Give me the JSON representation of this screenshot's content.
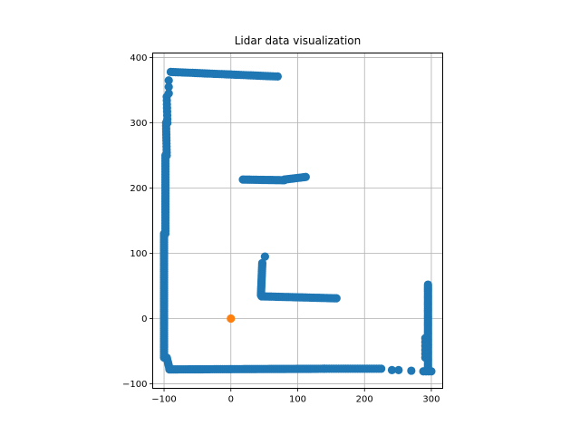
{
  "chart_data": {
    "type": "scatter",
    "title": "Lidar data visualization",
    "xlabel": "",
    "ylabel": "",
    "xlim": [
      -117,
      317
    ],
    "ylim": [
      -107,
      407
    ],
    "xticks": [
      -100,
      0,
      100,
      200,
      300
    ],
    "yticks": [
      -100,
      0,
      100,
      200,
      300,
      400
    ],
    "grid": true,
    "legend": "none",
    "series": [
      {
        "color": "#1f77b4",
        "segments": [
          {
            "from": [
              -100,
              130
            ],
            "to": [
              -100,
              -60
            ],
            "n": 60
          },
          {
            "from": [
              -98,
              250
            ],
            "to": [
              -98,
              130
            ],
            "n": 30
          },
          {
            "from": [
              -97,
              300
            ],
            "to": [
              -96,
              250
            ],
            "n": 12
          },
          {
            "from": [
              -96,
              340
            ],
            "to": [
              -95,
              300
            ],
            "n": 8
          },
          {
            "from": [
              -93,
              365
            ],
            "to": [
              -93,
              345
            ],
            "n": 3
          },
          {
            "from": [
              -90,
              378
            ],
            "to": [
              70,
              371
            ],
            "n": 45
          },
          {
            "from": [
              -96,
              -60
            ],
            "to": [
              -92,
              -76
            ],
            "n": 8
          },
          {
            "from": [
              -92,
              -78
            ],
            "to": [
              140,
              -77
            ],
            "n": 80
          },
          {
            "from": [
              140,
              -77
            ],
            "to": [
              225,
              -77
            ],
            "n": 25
          },
          {
            "from": [
              241,
              -79
            ],
            "to": [
              251,
              -79
            ],
            "n": 2
          },
          {
            "from": [
              270,
              -80
            ],
            "to": [
              270,
              -80
            ],
            "n": 1
          },
          {
            "from": [
              288,
              -81
            ],
            "to": [
              300,
              -81
            ],
            "n": 4
          },
          {
            "from": [
              295,
              -76
            ],
            "to": [
              295,
              52
            ],
            "n": 50
          },
          {
            "from": [
              291,
              -60
            ],
            "to": [
              291,
              -30
            ],
            "n": 6
          },
          {
            "from": [
              18,
              213
            ],
            "to": [
              80,
              212
            ],
            "n": 25
          },
          {
            "from": [
              80,
              213
            ],
            "to": [
              112,
              217
            ],
            "n": 12
          },
          {
            "from": [
              51,
              95
            ],
            "to": [
              51,
              95
            ],
            "n": 1
          },
          {
            "from": [
              47,
              85
            ],
            "to": [
              45,
              36
            ],
            "n": 20
          },
          {
            "from": [
              46,
              34
            ],
            "to": [
              158,
              31
            ],
            "n": 40
          }
        ]
      },
      {
        "color": "#ff7f0e",
        "points": [
          [
            0,
            0
          ]
        ]
      }
    ]
  }
}
